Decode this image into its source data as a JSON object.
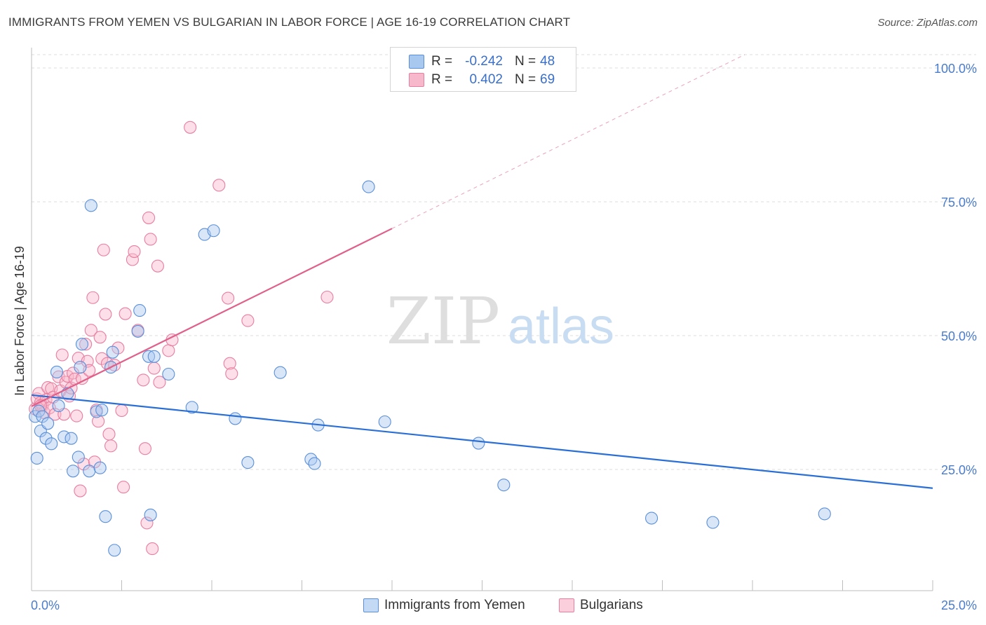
{
  "header": {
    "title": "IMMIGRANTS FROM YEMEN VS BULGARIAN IN LABOR FORCE | AGE 16-19 CORRELATION CHART",
    "source": "Source: ZipAtlas.com"
  },
  "watermark": {
    "zip": "ZIP",
    "atlas": "atlas"
  },
  "legend": {
    "rows": [
      {
        "r_label": "R =",
        "r_value": "-0.242",
        "n_label": "N =",
        "n_value": "48",
        "color": "#a8c8f0"
      },
      {
        "r_label": "R =",
        "r_value": "0.402",
        "n_label": "N =",
        "n_value": "69",
        "color": "#f8b8cc"
      }
    ]
  },
  "bottom_legend": {
    "items": [
      {
        "label": "Immigrants from Yemen",
        "color": "#a8c8f0"
      },
      {
        "label": "Bulgarians",
        "color": "#f8b8cc"
      }
    ]
  },
  "colors": {
    "blue_fill": "#a8c8f0",
    "blue_stroke": "#5a8fd8",
    "blue_line": "#2a6fd6",
    "pink_fill": "#f8b8cc",
    "pink_stroke": "#e87ea0",
    "pink_line": "#e0608a",
    "grid": "#dcdcdc",
    "tick_text": "#4a7ccc"
  },
  "chart_data": {
    "type": "scatter",
    "title": "IMMIGRANTS FROM YEMEN VS BULGARIAN IN LABOR FORCE | AGE 16-19 CORRELATION CHART",
    "xlabel": "",
    "ylabel": "In Labor Force | Age 16-19",
    "xlim": [
      0,
      25
    ],
    "ylim": [
      0,
      105
    ],
    "x_tick_labels": [
      "0.0%",
      "25.0%"
    ],
    "y_ticks": [
      25,
      50,
      75,
      100
    ],
    "y_tick_labels": [
      "25.0%",
      "50.0%",
      "75.0%",
      "100.0%"
    ],
    "grid": true,
    "legend_position": "top-center",
    "series": [
      {
        "name": "Immigrants from Yemen",
        "color": "#a8c8f0",
        "r": -0.242,
        "n": 48,
        "trend": {
          "x": [
            0,
            25
          ],
          "y": [
            38.9,
            21.5
          ]
        },
        "points": [
          [
            0.1,
            34.9
          ],
          [
            0.15,
            27.1
          ],
          [
            0.2,
            35.9
          ],
          [
            0.25,
            32.2
          ],
          [
            0.3,
            34.9
          ],
          [
            0.4,
            30.8
          ],
          [
            0.45,
            33.6
          ],
          [
            0.55,
            29.8
          ],
          [
            0.7,
            43.2
          ],
          [
            0.75,
            36.9
          ],
          [
            0.9,
            31.1
          ],
          [
            1.0,
            39.2
          ],
          [
            1.1,
            30.8
          ],
          [
            1.15,
            24.7
          ],
          [
            1.3,
            27.3
          ],
          [
            1.35,
            44.1
          ],
          [
            1.4,
            48.4
          ],
          [
            1.6,
            24.7
          ],
          [
            1.65,
            74.3
          ],
          [
            1.8,
            35.8
          ],
          [
            1.9,
            25.3
          ],
          [
            1.95,
            36.1
          ],
          [
            2.05,
            16.2
          ],
          [
            2.2,
            44.1
          ],
          [
            2.25,
            46.9
          ],
          [
            2.3,
            9.9
          ],
          [
            2.95,
            50.8
          ],
          [
            3.0,
            54.7
          ],
          [
            3.25,
            46.1
          ],
          [
            3.3,
            16.5
          ],
          [
            3.4,
            46.1
          ],
          [
            3.8,
            42.8
          ],
          [
            4.45,
            36.6
          ],
          [
            4.8,
            68.9
          ],
          [
            5.05,
            69.6
          ],
          [
            5.65,
            34.5
          ],
          [
            6.0,
            26.3
          ],
          [
            6.9,
            43.1
          ],
          [
            7.75,
            26.9
          ],
          [
            7.85,
            26.1
          ],
          [
            7.95,
            33.3
          ],
          [
            9.35,
            77.8
          ],
          [
            9.8,
            33.9
          ],
          [
            12.4,
            29.9
          ],
          [
            13.1,
            22.1
          ],
          [
            17.2,
            15.9
          ],
          [
            18.9,
            15.1
          ],
          [
            22.0,
            16.7
          ]
        ]
      },
      {
        "name": "Bulgarians",
        "color": "#f8b8cc",
        "r": 0.402,
        "n": 69,
        "trend": {
          "x": [
            0,
            10.0
          ],
          "y": [
            36.8,
            70.0
          ]
        },
        "trend_extension": {
          "x": [
            10.0,
            25
          ],
          "y": [
            70.0,
            119.8
          ]
        },
        "points": [
          [
            0.1,
            36.3
          ],
          [
            0.15,
            38.2
          ],
          [
            0.2,
            39.2
          ],
          [
            0.25,
            37.5
          ],
          [
            0.3,
            36.9
          ],
          [
            0.35,
            35.6
          ],
          [
            0.4,
            38.0
          ],
          [
            0.45,
            40.3
          ],
          [
            0.5,
            36.5
          ],
          [
            0.55,
            40.1
          ],
          [
            0.6,
            38.5
          ],
          [
            0.65,
            35.3
          ],
          [
            0.75,
            42.3
          ],
          [
            0.8,
            39.7
          ],
          [
            0.85,
            46.4
          ],
          [
            0.9,
            35.3
          ],
          [
            0.95,
            41.3
          ],
          [
            1.0,
            42.4
          ],
          [
            1.05,
            38.7
          ],
          [
            1.1,
            40.2
          ],
          [
            1.15,
            43.0
          ],
          [
            1.2,
            41.9
          ],
          [
            1.25,
            35.0
          ],
          [
            1.3,
            45.8
          ],
          [
            1.35,
            21.0
          ],
          [
            1.4,
            42.0
          ],
          [
            1.45,
            26.0
          ],
          [
            1.5,
            48.4
          ],
          [
            1.55,
            45.2
          ],
          [
            1.6,
            43.5
          ],
          [
            1.65,
            51.0
          ],
          [
            1.7,
            57.1
          ],
          [
            1.75,
            26.4
          ],
          [
            1.8,
            36.1
          ],
          [
            1.85,
            34.0
          ],
          [
            1.9,
            49.7
          ],
          [
            1.95,
            45.7
          ],
          [
            2.0,
            66.0
          ],
          [
            2.05,
            54.0
          ],
          [
            2.1,
            44.8
          ],
          [
            2.15,
            31.6
          ],
          [
            2.2,
            29.4
          ],
          [
            2.3,
            44.5
          ],
          [
            2.4,
            47.7
          ],
          [
            2.5,
            36.0
          ],
          [
            2.55,
            21.7
          ],
          [
            2.6,
            54.1
          ],
          [
            2.8,
            64.2
          ],
          [
            2.85,
            65.7
          ],
          [
            2.95,
            51.0
          ],
          [
            3.1,
            41.7
          ],
          [
            3.15,
            28.9
          ],
          [
            3.2,
            15.0
          ],
          [
            3.25,
            72.0
          ],
          [
            3.3,
            68.0
          ],
          [
            3.35,
            10.2
          ],
          [
            3.4,
            43.9
          ],
          [
            3.5,
            63.0
          ],
          [
            3.55,
            41.3
          ],
          [
            3.8,
            47.2
          ],
          [
            3.9,
            49.2
          ],
          [
            4.4,
            88.9
          ],
          [
            5.2,
            78.1
          ],
          [
            5.45,
            57.0
          ],
          [
            5.5,
            44.8
          ],
          [
            5.55,
            42.9
          ],
          [
            6.0,
            52.8
          ],
          [
            8.2,
            57.2
          ],
          [
            0.25,
            36.9
          ]
        ]
      }
    ]
  }
}
